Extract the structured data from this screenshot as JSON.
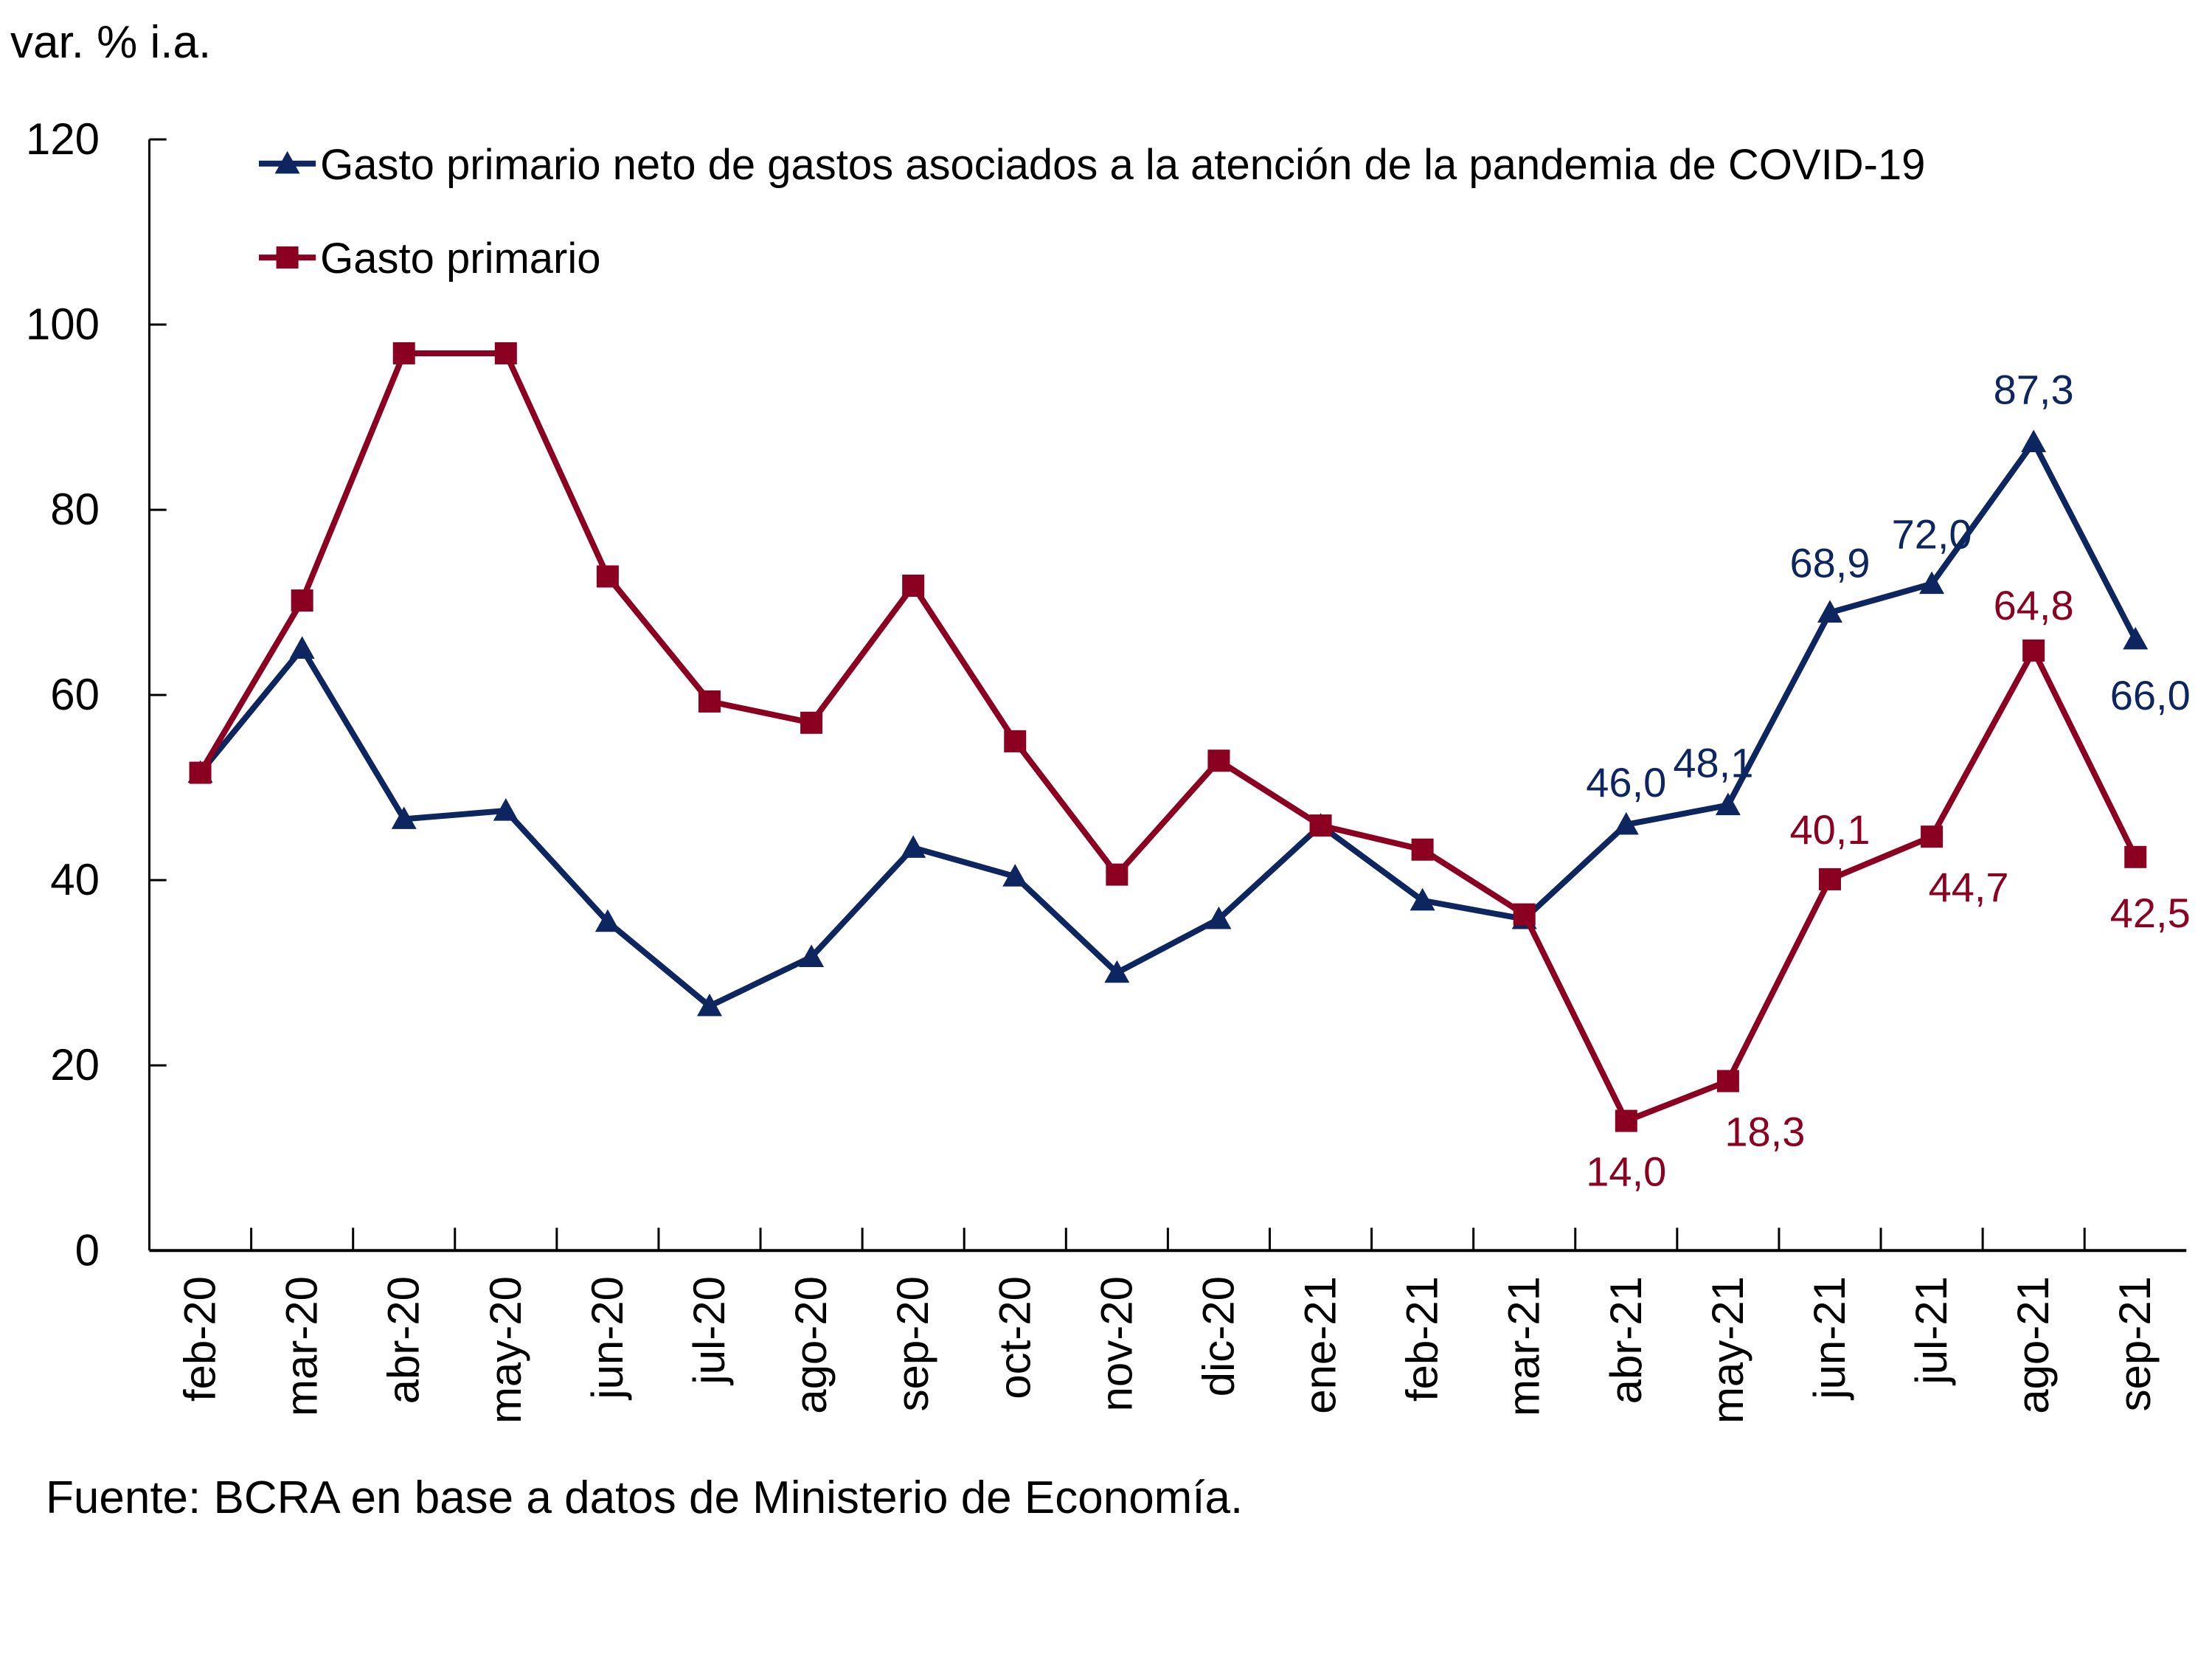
{
  "chart_data": {
    "type": "line",
    "title": "",
    "ylabel": "var. % i.a.",
    "xlabel": "",
    "ylim": [
      0,
      120
    ],
    "yticks": [
      0,
      20,
      40,
      60,
      80,
      100,
      120
    ],
    "grid": false,
    "legend_position": "top",
    "categories": [
      "feb-20",
      "mar-20",
      "abr-20",
      "may-20",
      "jun-20",
      "jul-20",
      "ago-20",
      "sep-20",
      "oct-20",
      "nov-20",
      "dic-20",
      "ene-21",
      "feb-21",
      "mar-21",
      "abr-21",
      "may-21",
      "jun-21",
      "jul-21",
      "ago-21",
      "sep-21"
    ],
    "series": [
      {
        "name": "Gasto primario neto de gastos asociados a la atención de la pandemia de COVID-19",
        "color": "#0d2660",
        "marker": "triangle",
        "values": [
          51.6,
          65.0,
          46.6,
          47.5,
          35.5,
          26.4,
          31.7,
          43.5,
          40.4,
          30.0,
          35.8,
          45.9,
          37.8,
          35.8,
          46.0,
          48.1,
          68.9,
          72.0,
          87.3,
          66.0
        ],
        "labels": {
          "14": "46,0",
          "15": "48,1",
          "16": "68,9",
          "17": "72,0",
          "18": "87,3",
          "19": "66,0"
        }
      },
      {
        "name": "Gasto primario",
        "color": "#8b0020",
        "marker": "square",
        "values": [
          51.6,
          70.2,
          96.9,
          96.9,
          72.8,
          59.3,
          57.0,
          71.8,
          55.0,
          40.6,
          52.9,
          45.9,
          43.3,
          36.3,
          14.0,
          18.3,
          40.1,
          44.7,
          64.8,
          42.5
        ],
        "labels": {
          "14": "14,0",
          "15": "18,3",
          "16": "40,1",
          "17": "44,7",
          "18": "64,8",
          "19": "42,5"
        }
      }
    ]
  },
  "source": "Fuente: BCRA en base a datos de Ministerio de Economía."
}
